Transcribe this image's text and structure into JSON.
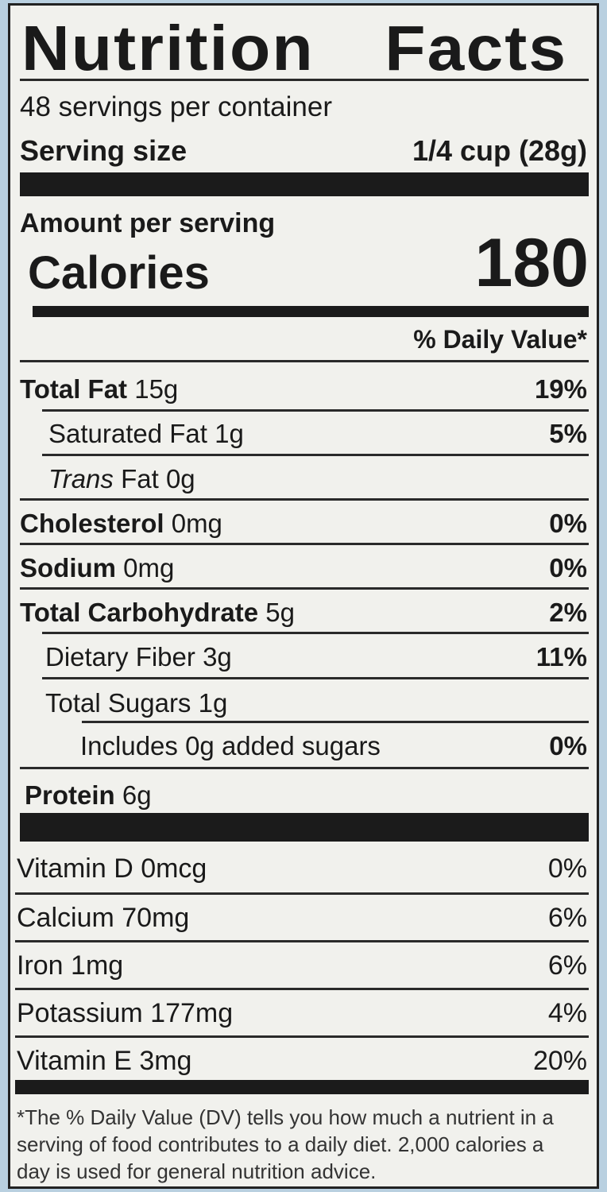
{
  "title": "Nutrition Facts",
  "servings_per_container": "48 servings per container",
  "serving_size": {
    "label": "Serving size",
    "value": "1/4 cup (28g)"
  },
  "amount_per_serving": "Amount per serving",
  "calories": {
    "label": "Calories",
    "value": "180"
  },
  "daily_value_header": "% Daily Value*",
  "nutrients": [
    {
      "name": "Total Fat",
      "amount": "15g",
      "dv": "19%"
    },
    {
      "name": "Saturated Fat",
      "amount": "1g",
      "dv": "5%"
    },
    {
      "name": "Trans",
      "name2": "Fat",
      "amount": "0g",
      "dv": ""
    },
    {
      "name": "Cholesterol",
      "amount": "0mg",
      "dv": "0%"
    },
    {
      "name": "Sodium",
      "amount": "0mg",
      "dv": "0%"
    },
    {
      "name": "Total Carbohydrate",
      "amount": "5g",
      "dv": "2%"
    },
    {
      "name": "Dietary Fiber",
      "amount": "3g",
      "dv": "11%"
    },
    {
      "name": "Total Sugars",
      "amount": "1g",
      "dv": ""
    },
    {
      "name": "Includes 0g added sugars",
      "amount": "",
      "dv": "0%"
    },
    {
      "name": "Protein",
      "amount": "6g",
      "dv": ""
    }
  ],
  "vitamins": [
    {
      "name": "Vitamin D 0mcg",
      "dv": "0%"
    },
    {
      "name": "Calcium 70mg",
      "dv": "6%"
    },
    {
      "name": "Iron 1mg",
      "dv": "6%"
    },
    {
      "name": "Potassium 177mg",
      "dv": "4%"
    },
    {
      "name": "Vitamin E 3mg",
      "dv": "20%"
    }
  ],
  "footnote": "*The % Daily Value (DV) tells you how much a nutrient in a serving of food contributes to a daily diet. 2,000 calories a day is used for general nutrition advice."
}
